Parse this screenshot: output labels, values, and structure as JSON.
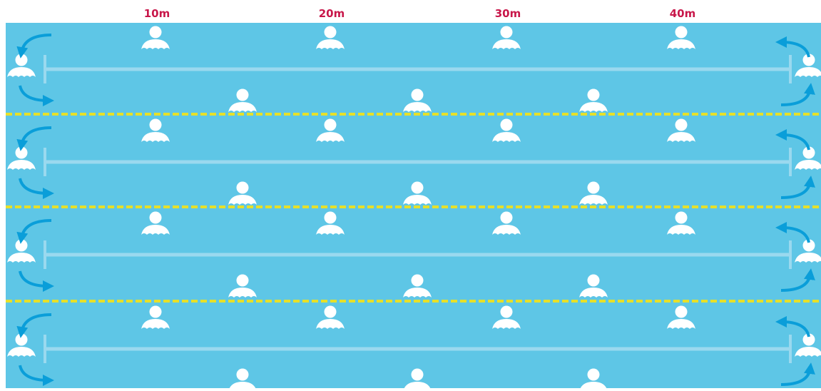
{
  "distance_markers": [
    "10m",
    "20m",
    "30m",
    "40m"
  ]
}
